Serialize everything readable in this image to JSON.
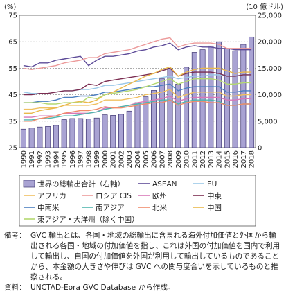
{
  "chart_data": {
    "type": "bar-line",
    "left_unit": "(%)",
    "right_unit": "(10 億ドル)",
    "left_ticks": [
      "25",
      "35",
      "45",
      "55",
      "65",
      "75"
    ],
    "right_ticks": [
      "0",
      "5,000",
      "10,000",
      "15,000",
      "20,000",
      "25,000"
    ],
    "ylim_left": [
      25,
      75
    ],
    "ylim_right": [
      0,
      25000
    ],
    "categories": [
      "1990",
      "1991",
      "1992",
      "1993",
      "1994",
      "1995",
      "1996",
      "1997",
      "1998",
      "1999",
      "2000",
      "2001",
      "2002",
      "2003",
      "2004",
      "2005",
      "2006",
      "2007",
      "2008",
      "2009",
      "2010",
      "2011",
      "2012",
      "2013",
      "2014",
      "2015",
      "2016",
      "2017",
      "2018"
    ],
    "bar_series": {
      "name": "世界の総輸出合計（右軸）",
      "color": "#a9a3d3",
      "values": [
        3500,
        3700,
        3900,
        4000,
        4200,
        5300,
        5500,
        5500,
        5400,
        5600,
        6200,
        6100,
        6300,
        6900,
        8500,
        9600,
        10800,
        13000,
        15000,
        12000,
        15200,
        18000,
        18500,
        19200,
        20000,
        18700,
        18300,
        19500,
        20900
      ]
    },
    "series": [
      {
        "name": "ASEAN",
        "color": "#5d4b98",
        "values": [
          56,
          55.5,
          57,
          57,
          58,
          58.5,
          59,
          59.5,
          56,
          58,
          59.5,
          59.5,
          60,
          60.5,
          61.5,
          62,
          63,
          63.5,
          64.5,
          62,
          63,
          63.5,
          63,
          63,
          62.5,
          62.5,
          62,
          62,
          62
        ]
      },
      {
        "name": "EU",
        "color": "#9ac8e8",
        "values": [
          46,
          45.5,
          45.5,
          45.5,
          46,
          46.5,
          46.5,
          47,
          47,
          47.5,
          48.5,
          48.5,
          49,
          49.5,
          50,
          50.5,
          51,
          51.5,
          52,
          51,
          51.5,
          52,
          52,
          52.5,
          52.5,
          52,
          52,
          52.5,
          52.5
        ]
      },
      {
        "name": "アフリカ",
        "color": "#f0c060",
        "values": [
          39.5,
          39.5,
          40,
          40,
          40,
          41,
          41,
          41,
          41,
          41.5,
          43,
          43,
          43,
          43.5,
          44,
          45,
          45.5,
          46,
          47,
          44,
          45,
          46,
          46,
          46,
          46,
          44.5,
          44.5,
          45,
          45
        ]
      },
      {
        "name": "ロシア CIS",
        "color": "#ec9a9a",
        "values": [
          55,
          54.5,
          55,
          55.5,
          56,
          57,
          57.5,
          58,
          59,
          59,
          60.5,
          61,
          61.5,
          62,
          63,
          64,
          65,
          66,
          66.5,
          63,
          64,
          64.5,
          64.5,
          64.5,
          64,
          62.5,
          62.5,
          62.5,
          62.5
        ]
      },
      {
        "name": "欧州",
        "color": "#d878b8",
        "values": [
          36.5,
          36.5,
          37,
          37,
          37,
          38,
          38,
          38,
          38,
          38.5,
          40,
          40,
          40.5,
          41,
          42,
          42.5,
          43,
          43.5,
          44.5,
          42.5,
          43.5,
          44,
          44,
          44,
          44,
          43,
          43,
          43.5,
          43.5
        ]
      },
      {
        "name": "中東",
        "color": "#7b2c50",
        "values": [
          45,
          45,
          45.5,
          45.5,
          46,
          46.5,
          46.5,
          47,
          49,
          48.5,
          50,
          50.5,
          51,
          51.5,
          52,
          52.5,
          53,
          54,
          55,
          52,
          53,
          53.5,
          53.5,
          53.5,
          53,
          52,
          52,
          52.5,
          52.5
        ]
      },
      {
        "name": "中南米",
        "color": "#4a7fc0",
        "values": [
          42,
          42,
          42.5,
          42.5,
          43,
          44,
          44,
          44.5,
          44.5,
          45,
          46,
          46,
          46.5,
          47,
          47.5,
          48,
          48,
          48.5,
          49,
          46.5,
          47.5,
          48,
          48,
          48,
          48,
          46,
          46,
          46.5,
          46.5
        ]
      },
      {
        "name": "南アジア",
        "color": "#4fb5ad",
        "values": [
          35.5,
          35.5,
          36,
          36,
          36.5,
          37,
          37,
          37.5,
          38,
          38.5,
          39.5,
          40,
          40.5,
          41,
          41.5,
          42,
          42.5,
          43,
          43,
          41.5,
          42.5,
          43,
          43,
          43,
          42.5,
          41,
          41,
          41.5,
          41.5
        ]
      },
      {
        "name": "北米",
        "color": "#f08a6a",
        "values": [
          35,
          35,
          36,
          36.5,
          37,
          38,
          38.5,
          39,
          39,
          39.5,
          40.5,
          40,
          40,
          40.5,
          41,
          41.5,
          42,
          42,
          43,
          41,
          42,
          42.5,
          42.5,
          42,
          42,
          41,
          41,
          41.5,
          41.5
        ]
      },
      {
        "name": "中国",
        "color": "#e9b84a",
        "values": [
          38,
          38,
          39,
          39.5,
          40,
          41,
          42,
          42.5,
          42,
          43,
          45,
          46,
          47.5,
          49,
          50.5,
          52,
          53,
          54.5,
          55.5,
          52,
          53.5,
          54.5,
          55,
          55,
          55,
          54,
          53,
          53.5,
          53.5
        ]
      },
      {
        "name": "東アジア・大洋州（除く中国）",
        "color": "#b4d870",
        "values": [
          42,
          42,
          42,
          41.5,
          41.5,
          42,
          42,
          42,
          44,
          43.5,
          45,
          45.5,
          46,
          46.5,
          47,
          48,
          49,
          50,
          51,
          49,
          50,
          51,
          51,
          51,
          50.5,
          49,
          49,
          49.5,
          49.5
        ]
      }
    ]
  },
  "legend_rows": [
    [
      "世界の総輸出合計（右軸）",
      "ASEAN",
      "EU"
    ],
    [
      "アフリカ",
      "ロシア CIS",
      "欧州",
      "中東"
    ],
    [
      "中南米",
      "南アジア",
      "北米",
      "中国"
    ],
    [
      "東アジア・大洋州（除く中国）"
    ]
  ],
  "notes": {
    "biko_label": "備考：",
    "biko_text": "GVC 輸出とは、各国・地域の総輸出に含まれる海外付加価値と外国から輸出される各国・地域の付加価値を指し、これは外国の付加価値を国内で利用して輸出し、自国の付加価値を外国が利用して輸出しているものであることから、本金額の大きさや伸びは GVC への関与度合いを示しているものと推察される。",
    "source_label": "資料：",
    "source_text": "UNCTAD-Eora GVC Database から作成。"
  }
}
